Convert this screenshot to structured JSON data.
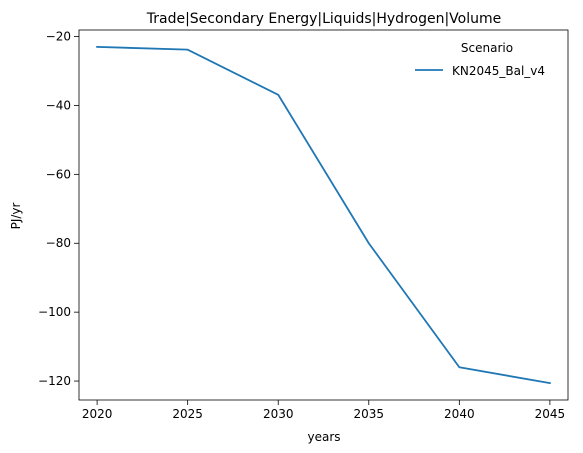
{
  "chart_data": {
    "type": "line",
    "title": "Trade|Secondary Energy|Liquids|Hydrogen|Volume",
    "xlabel": "years",
    "ylabel": "PJ/yr",
    "x": [
      2020,
      2025,
      2030,
      2035,
      2040,
      2045
    ],
    "xticks": [
      2020,
      2025,
      2030,
      2035,
      2040,
      2045
    ],
    "yticks": [
      -20,
      -40,
      -60,
      -80,
      -100,
      -120
    ],
    "ytick_labels": [
      "−20",
      "−40",
      "−60",
      "−80",
      "−100",
      "−120"
    ],
    "xlim": [
      2019,
      2046
    ],
    "ylim": [
      -125.5,
      -18.1
    ],
    "grid": false,
    "legend": {
      "title": "Scenario",
      "placement": "top-right"
    },
    "series": [
      {
        "name": "KN2045_Bal_v4",
        "color": "#1f77b4",
        "values": [
          -23.0,
          -23.8,
          -36.9,
          -80.0,
          -116.0,
          -120.6
        ]
      }
    ]
  }
}
